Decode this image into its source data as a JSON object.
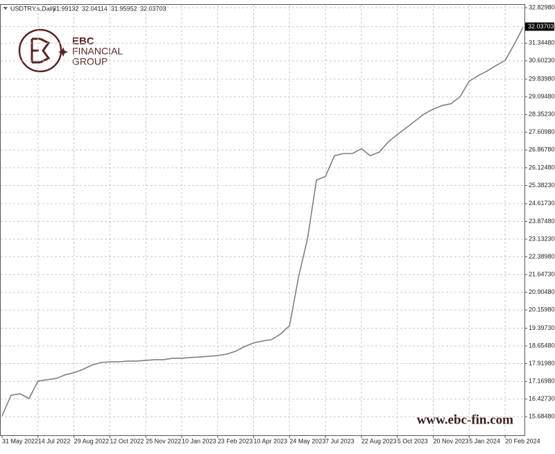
{
  "chart_data": {
    "type": "line",
    "title": "USDTRY.s,Daily",
    "ohlc": [
      31.99132,
      32.04114,
      31.95952,
      32.03703
    ],
    "logo": {
      "name": "EBC",
      "line1": "FINANCIAL",
      "line2": "GROUP"
    },
    "watermark": "www.ebc-fin.com",
    "color": "#7f7f7f",
    "grid": true,
    "categories": [
      "31 May 2022",
      null,
      null,
      null,
      "14 Jul 2022",
      null,
      null,
      null,
      "29 Aug 2022",
      null,
      null,
      null,
      "12 Oct 2022",
      null,
      null,
      null,
      "25 Nov 2022",
      null,
      null,
      null,
      "10 Jan 2023",
      null,
      null,
      null,
      "23 Feb 2023",
      null,
      null,
      null,
      "10 Apr 2023",
      null,
      null,
      null,
      "24 May 2023",
      null,
      null,
      null,
      "7 Jul 2023",
      null,
      null,
      null,
      "22 Aug 2023",
      null,
      null,
      null,
      "5 Oct 2023",
      null,
      null,
      null,
      "20 Nov 2023",
      null,
      null,
      null,
      "5 Jan 2024",
      null,
      null,
      null,
      "20 Feb 2024",
      null,
      null
    ],
    "values": [
      15.72,
      16.59,
      16.65,
      16.45,
      17.18,
      17.24,
      17.29,
      17.44,
      17.53,
      17.67,
      17.85,
      17.96,
      17.99,
      17.99,
      18.02,
      18.02,
      18.05,
      18.08,
      18.08,
      18.14,
      18.14,
      18.17,
      18.19,
      18.22,
      18.25,
      18.31,
      18.43,
      18.63,
      18.78,
      18.86,
      18.92,
      19.15,
      19.5,
      21.54,
      23.14,
      25.61,
      25.76,
      26.63,
      26.72,
      26.72,
      26.92,
      26.63,
      26.78,
      27.21,
      27.51,
      27.8,
      28.09,
      28.38,
      28.58,
      28.73,
      28.81,
      29.11,
      29.75,
      29.98,
      30.18,
      30.41,
      30.62,
      31.29,
      32.01
    ],
    "ylim": [
      14.91,
      32.95
    ],
    "yticks": [
      {
        "value": 32.8298,
        "label": "32.82980"
      },
      {
        "value": 31.3448,
        "label": "31.34480"
      },
      {
        "value": 30.6023,
        "label": "30.60230"
      },
      {
        "value": 29.8398,
        "label": "29.83980"
      },
      {
        "value": 29.0948,
        "label": "29.09480"
      },
      {
        "value": 28.3523,
        "label": "28.35230"
      },
      {
        "value": 27.6098,
        "label": "27.60980"
      },
      {
        "value": 26.8678,
        "label": "26.86780"
      },
      {
        "value": 26.1248,
        "label": "26.12480"
      },
      {
        "value": 25.3823,
        "label": "25.38230"
      },
      {
        "value": 24.6173,
        "label": "24.61730"
      },
      {
        "value": 23.8748,
        "label": "23.87480"
      },
      {
        "value": 23.1323,
        "label": "23.13230"
      },
      {
        "value": 22.3898,
        "label": "22.38980"
      },
      {
        "value": 21.6473,
        "label": "21.64730"
      },
      {
        "value": 20.9048,
        "label": "20.90480"
      },
      {
        "value": 20.1598,
        "label": "20.15980"
      },
      {
        "value": 19.3973,
        "label": "19.39730"
      },
      {
        "value": 18.6548,
        "label": "18.65480"
      },
      {
        "value": 17.9198,
        "label": "17.91980"
      },
      {
        "value": 17.1698,
        "label": "17.16980"
      },
      {
        "value": 16.4273,
        "label": "16.42730"
      },
      {
        "value": 15.6848,
        "label": "15.68480"
      }
    ]
  }
}
